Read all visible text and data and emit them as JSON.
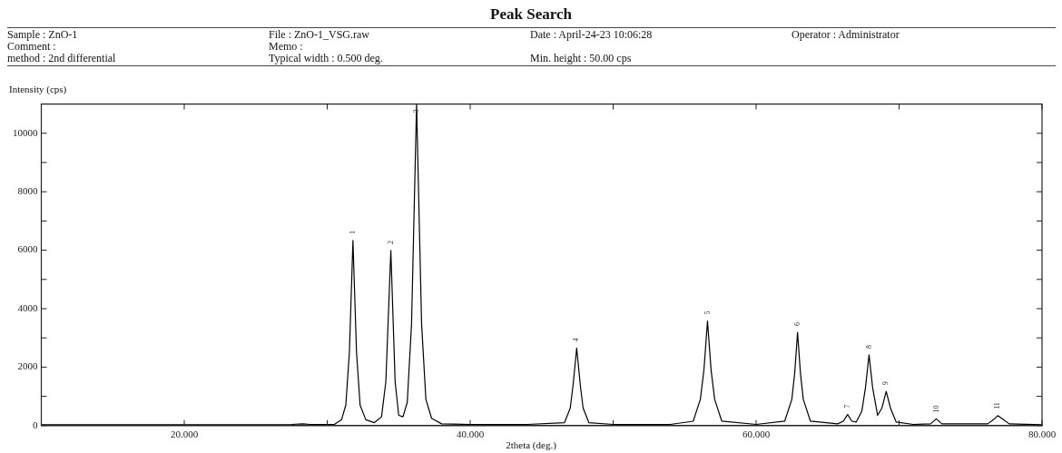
{
  "chart_data": {
    "type": "line",
    "title": "Peak Search",
    "xlabel": "2theta (deg.)",
    "ylabel": "Intensity (cps)",
    "annotations": [
      "Sample : ZnO-1",
      "File : ZnO-1_VSG.raw",
      "Date : April-24-23 10:06:28",
      "Operator : Administrator",
      "Comment :",
      "Memo :",
      "method : 2nd differential",
      "Typical width : 0.500 deg.",
      "Min. height : 50.00 cps",
      {
        "text": "1",
        "x": 31.8,
        "y": 6330
      },
      {
        "text": "2",
        "x": 34.45,
        "y": 5990
      },
      {
        "text": "3",
        "x": 36.25,
        "y": 11000
      },
      {
        "text": "4",
        "x": 47.45,
        "y": 2650
      },
      {
        "text": "5",
        "x": 56.6,
        "y": 3580
      },
      {
        "text": "6",
        "x": 62.9,
        "y": 3190
      },
      {
        "text": "7",
        "x": 66.4,
        "y": 380
      },
      {
        "text": "8",
        "x": 67.9,
        "y": 2420
      },
      {
        "text": "9",
        "x": 69.1,
        "y": 1170
      },
      {
        "text": "10",
        "x": 72.6,
        "y": 230
      },
      {
        "text": "11",
        "x": 76.9,
        "y": 340
      }
    ],
    "series": [
      {
        "color": "#000000",
        "x": [
          10,
          15,
          20,
          25,
          27.5,
          28.3,
          28.8,
          30.5,
          31.0,
          31.3,
          31.55,
          31.8,
          32.05,
          32.3,
          32.7,
          33.3,
          33.8,
          34.1,
          34.45,
          34.75,
          35.0,
          35.3,
          35.6,
          35.9,
          36.25,
          36.6,
          36.9,
          37.3,
          38.0,
          40,
          44,
          46.6,
          47.0,
          47.2,
          47.45,
          47.7,
          47.9,
          48.3,
          50,
          54,
          55.6,
          56.1,
          56.35,
          56.6,
          56.85,
          57.1,
          57.6,
          60,
          62.0,
          62.5,
          62.7,
          62.9,
          63.1,
          63.3,
          63.8,
          65.7,
          66.1,
          66.4,
          66.7,
          67.0,
          67.4,
          67.65,
          67.9,
          68.15,
          68.5,
          68.8,
          69.1,
          69.4,
          69.8,
          71,
          72.2,
          72.6,
          73.0,
          76.2,
          76.6,
          76.9,
          77.3,
          77.7,
          80
        ],
        "values": [
          30,
          30,
          30,
          30,
          40,
          60,
          40,
          40,
          200,
          700,
          2500,
          6330,
          2500,
          700,
          200,
          100,
          300,
          1500,
          5990,
          1500,
          350,
          300,
          800,
          3500,
          11000,
          3500,
          900,
          250,
          60,
          40,
          40,
          100,
          600,
          1400,
          2650,
          1400,
          600,
          100,
          40,
          40,
          150,
          900,
          1900,
          3580,
          1900,
          900,
          150,
          40,
          150,
          900,
          1800,
          3190,
          1800,
          900,
          150,
          60,
          150,
          380,
          150,
          120,
          500,
          1300,
          2420,
          1300,
          350,
          600,
          1170,
          600,
          120,
          40,
          60,
          230,
          60,
          60,
          200,
          340,
          200,
          60,
          30
        ]
      }
    ],
    "xlim": [
      10,
      80
    ],
    "xticks": [
      {
        "value": 20,
        "label": "20.000"
      },
      {
        "value": 30,
        "label": null
      },
      {
        "value": 40,
        "label": "40.000"
      },
      {
        "value": 50,
        "label": null
      },
      {
        "value": 60,
        "label": "60.000"
      },
      {
        "value": 70,
        "label": null
      },
      {
        "value": 80,
        "label": "80.000"
      }
    ],
    "ylim": [
      0,
      11000
    ],
    "yticks": [
      0,
      {
        "value": 1000,
        "label": null
      },
      2000,
      {
        "value": 3000,
        "label": null
      },
      4000,
      {
        "value": 5000,
        "label": null
      },
      6000,
      {
        "value": 7000,
        "label": null
      },
      8000,
      {
        "value": 9000,
        "label": null
      },
      10000
    ],
    "grid": false,
    "legend": false,
    "marker": "none",
    "line_style": "solid"
  }
}
